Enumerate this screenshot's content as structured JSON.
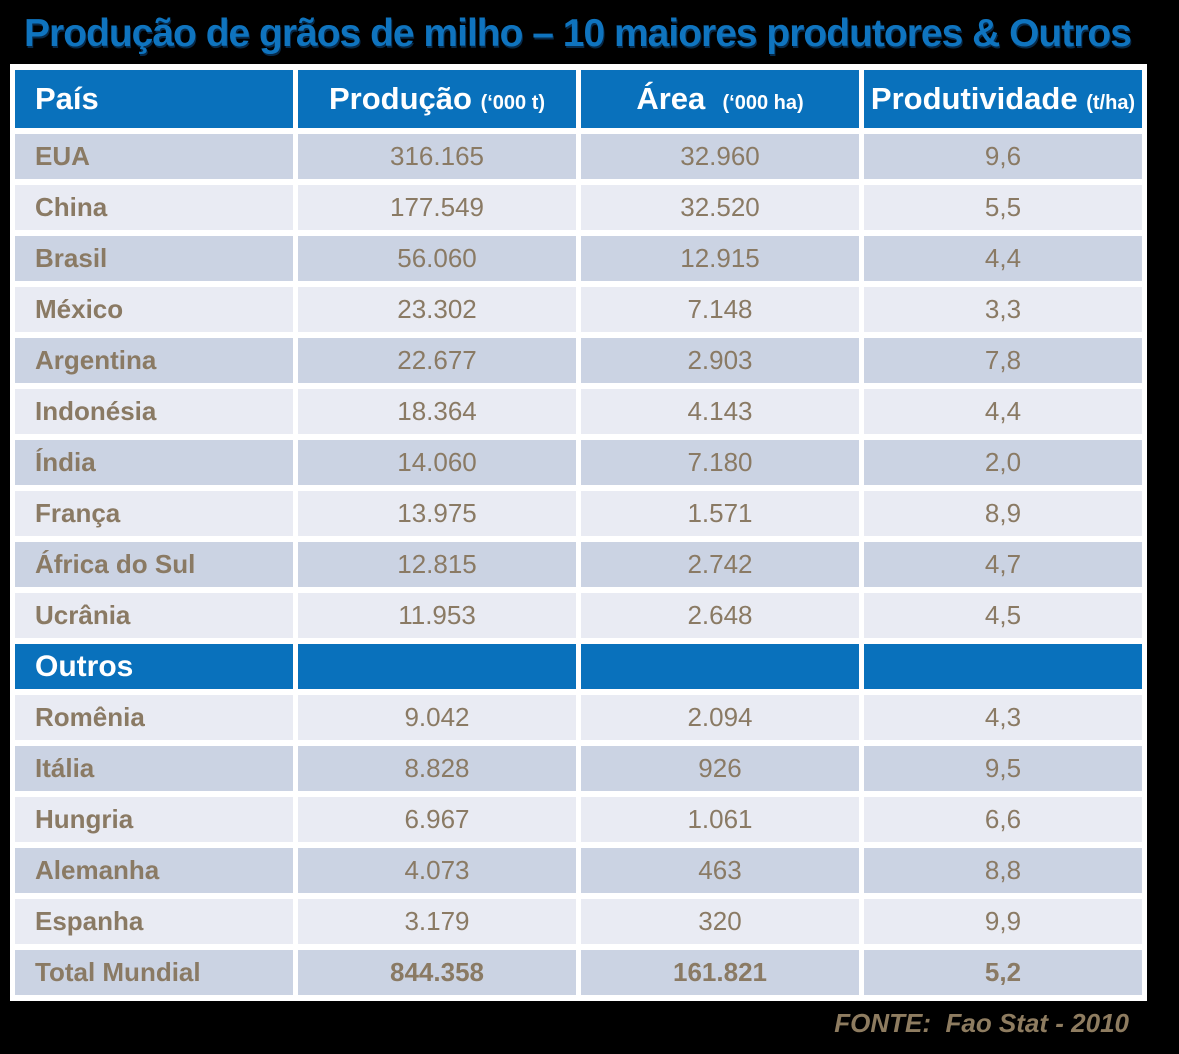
{
  "title": "Produção de grãos de milho – 10 maiores produtores & Outros",
  "colors": {
    "background": "#000000",
    "title_blue": "#0F74BF",
    "header_blue": "#0971BC",
    "row_dark": "#CBD3E3",
    "row_light": "#E9EBF3",
    "row_text_brown": "#8A7A64",
    "grid_white": "#FFFFFF",
    "source_brown": "#8E7C60"
  },
  "table": {
    "columns": [
      {
        "label": "País",
        "unit": ""
      },
      {
        "label": "Produção",
        "unit": "(‘000 t)"
      },
      {
        "label": "Área",
        "unit": "(‘000 ha)"
      },
      {
        "label": "Produtividade",
        "unit": "(t/ha)"
      }
    ],
    "rows": [
      {
        "type": "data",
        "shade": "dark",
        "name": "EUA",
        "production": "316.165",
        "area": "32.960",
        "productivity": "9,6"
      },
      {
        "type": "data",
        "shade": "light",
        "name": "China",
        "production": "177.549",
        "area": "32.520",
        "productivity": "5,5"
      },
      {
        "type": "data",
        "shade": "dark",
        "name": "Brasil",
        "production": "56.060",
        "area": "12.915",
        "productivity": "4,4"
      },
      {
        "type": "data",
        "shade": "light",
        "name": "México",
        "production": "23.302",
        "area": "7.148",
        "productivity": "3,3"
      },
      {
        "type": "data",
        "shade": "dark",
        "name": "Argentina",
        "production": "22.677",
        "area": "2.903",
        "productivity": "7,8"
      },
      {
        "type": "data",
        "shade": "light",
        "name": "Indonésia",
        "production": "18.364",
        "area": "4.143",
        "productivity": "4,4"
      },
      {
        "type": "data",
        "shade": "dark",
        "name": "Índia",
        "production": "14.060",
        "area": "7.180",
        "productivity": "2,0"
      },
      {
        "type": "data",
        "shade": "light",
        "name": "França",
        "production": "13.975",
        "area": "1.571",
        "productivity": "8,9"
      },
      {
        "type": "data",
        "shade": "dark",
        "name": "África do Sul",
        "production": "12.815",
        "area": "2.742",
        "productivity": "4,7"
      },
      {
        "type": "data",
        "shade": "light",
        "name": "Ucrânia",
        "production": "11.953",
        "area": "2.648",
        "productivity": "4,5"
      },
      {
        "type": "section",
        "shade": "section",
        "name": "Outros",
        "production": "",
        "area": "",
        "productivity": ""
      },
      {
        "type": "data",
        "shade": "light",
        "name": "Romênia",
        "production": "9.042",
        "area": "2.094",
        "productivity": "4,3"
      },
      {
        "type": "data",
        "shade": "dark",
        "name": "Itália",
        "production": "8.828",
        "area": "926",
        "productivity": "9,5"
      },
      {
        "type": "data",
        "shade": "light",
        "name": "Hungria",
        "production": "6.967",
        "area": "1.061",
        "productivity": "6,6"
      },
      {
        "type": "data",
        "shade": "dark",
        "name": "Alemanha",
        "production": "4.073",
        "area": "463",
        "productivity": "8,8"
      },
      {
        "type": "data",
        "shade": "light",
        "name": "Espanha",
        "production": "3.179",
        "area": "320",
        "productivity": "9,9"
      },
      {
        "type": "total",
        "shade": "dark",
        "name": "Total Mundial",
        "production": "844.358",
        "area": "161.821",
        "productivity": "5,2"
      }
    ]
  },
  "footer": {
    "source": "FONTE:  Fao Stat - 2010"
  },
  "chart_data": {
    "type": "table",
    "title": "Produção de grãos de milho – 10 maiores produtores & Outros",
    "columns": [
      "País",
      "Produção ('000 t)",
      "Área ('000 ha)",
      "Produtividade (t/ha)"
    ],
    "rows": [
      [
        "EUA",
        316165,
        32960,
        9.6
      ],
      [
        "China",
        177549,
        32520,
        5.5
      ],
      [
        "Brasil",
        56060,
        12915,
        4.4
      ],
      [
        "México",
        23302,
        7148,
        3.3
      ],
      [
        "Argentina",
        22677,
        2903,
        7.8
      ],
      [
        "Indonésia",
        18364,
        4143,
        4.4
      ],
      [
        "Índia",
        14060,
        7180,
        2.0
      ],
      [
        "França",
        13975,
        1571,
        8.9
      ],
      [
        "África do Sul",
        12815,
        2742,
        4.7
      ],
      [
        "Ucrânia",
        11953,
        2648,
        4.5
      ],
      [
        "Romênia",
        9042,
        2094,
        4.3
      ],
      [
        "Itália",
        8828,
        926,
        9.5
      ],
      [
        "Hungria",
        6967,
        1061,
        6.6
      ],
      [
        "Alemanha",
        4073,
        463,
        8.8
      ],
      [
        "Espanha",
        3179,
        320,
        9.9
      ]
    ],
    "section_break_after_row": 10,
    "section_break_label": "Outros",
    "total_row": [
      "Total Mundial",
      844358,
      161821,
      5.2
    ],
    "source": "FONTE: Fao Stat - 2010"
  }
}
